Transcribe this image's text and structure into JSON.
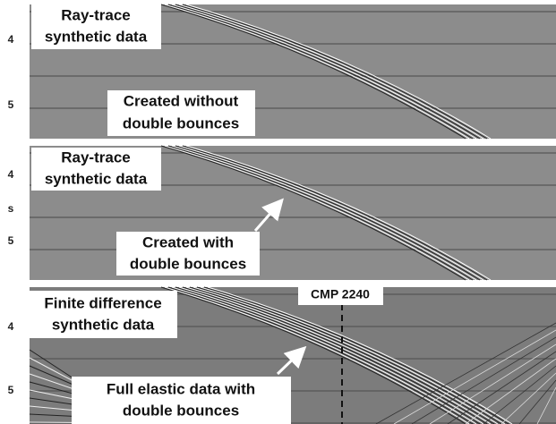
{
  "panels": [
    {
      "axis_labels": [
        "4",
        "5"
      ],
      "labels": [
        {
          "lines": [
            "Ray-trace",
            "synthetic data"
          ]
        },
        {
          "lines": [
            "Created without",
            "double bounces"
          ]
        }
      ]
    },
    {
      "axis_labels": [
        "4",
        "s",
        "5"
      ],
      "labels": [
        {
          "lines": [
            "Ray-trace",
            "synthetic data"
          ]
        },
        {
          "lines": [
            "Created with",
            "double bounces"
          ]
        }
      ]
    },
    {
      "axis_labels": [
        "4",
        "5"
      ],
      "labels": [
        {
          "lines": [
            "Finite difference",
            "synthetic data"
          ]
        },
        {
          "lines": [
            "Full elastic data with",
            "double bounces"
          ]
        }
      ],
      "marker": "CMP 2240"
    }
  ]
}
